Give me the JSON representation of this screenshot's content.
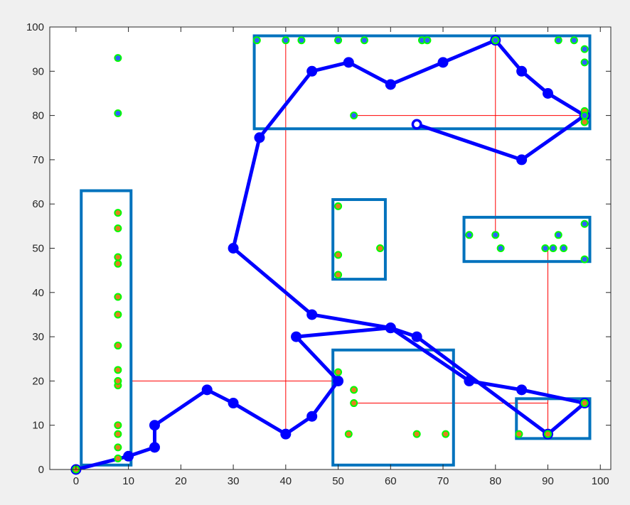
{
  "chart_data": {
    "type": "scatter",
    "title": "",
    "xlabel": "",
    "ylabel": "",
    "xlim": [
      -5,
      102
    ],
    "ylim": [
      0,
      100
    ],
    "grid": false,
    "xticks": [
      "0",
      "10",
      "20",
      "30",
      "40",
      "50",
      "60",
      "70",
      "80",
      "90",
      "100"
    ],
    "yticks": [
      "0",
      "10",
      "20",
      "30",
      "40",
      "50",
      "60",
      "70",
      "80",
      "90",
      "100"
    ],
    "colors": {
      "path": "#0000ff",
      "cluster_box": "#0072bd",
      "connector": "#ff0000",
      "marker_edge": "#00ff00",
      "marker_face_a": "#e08020",
      "marker_face_b": "#3060ff",
      "plot_bg": "#ffffff",
      "figure_bg": "#f0f0f0",
      "axis": "#262626"
    },
    "path_points": [
      [
        0,
        0
      ],
      [
        10,
        3
      ],
      [
        15,
        5
      ],
      [
        15,
        10
      ],
      [
        25,
        18
      ],
      [
        30,
        15
      ],
      [
        40,
        8
      ],
      [
        45,
        12
      ],
      [
        50,
        20
      ],
      [
        42,
        30
      ],
      [
        60,
        32
      ],
      [
        75,
        20
      ],
      [
        85,
        18
      ],
      [
        97,
        15
      ],
      [
        90,
        8
      ],
      [
        65,
        30
      ],
      [
        60,
        32
      ],
      [
        45,
        35
      ],
      [
        30,
        50
      ],
      [
        35,
        75
      ],
      [
        45,
        90
      ],
      [
        52,
        92
      ],
      [
        60,
        87
      ],
      [
        70,
        92
      ],
      [
        80,
        97
      ],
      [
        85,
        90
      ],
      [
        90,
        85
      ],
      [
        97,
        80
      ],
      [
        85,
        70
      ],
      [
        65,
        78
      ]
    ],
    "path_start": [
      65,
      78
    ],
    "cluster_boxes": [
      [
        1,
        1,
        10.5,
        63
      ],
      [
        49,
        43,
        59,
        61
      ],
      [
        49,
        1,
        72,
        27
      ],
      [
        74,
        47,
        98,
        57
      ],
      [
        84,
        7,
        98,
        16
      ],
      [
        34,
        77,
        98,
        98
      ]
    ],
    "connectors": [
      [
        [
          10.5,
          20
        ],
        [
          49,
          20
        ]
      ],
      [
        [
          40,
          8
        ],
        [
          40,
          97
        ]
      ],
      [
        [
          53,
          15
        ],
        [
          90,
          15
        ]
      ],
      [
        [
          90,
          8
        ],
        [
          90,
          50
        ]
      ],
      [
        [
          80,
          53
        ],
        [
          80,
          97
        ]
      ],
      [
        [
          53,
          80
        ],
        [
          97,
          80
        ]
      ]
    ],
    "points_a": [
      [
        0,
        0
      ],
      [
        8,
        2.5
      ],
      [
        8,
        5
      ],
      [
        8,
        8
      ],
      [
        8,
        10
      ],
      [
        8,
        19
      ],
      [
        8,
        20
      ],
      [
        8,
        22.5
      ],
      [
        8,
        28
      ],
      [
        8,
        35
      ],
      [
        8,
        39
      ],
      [
        8,
        46.5
      ],
      [
        8,
        48
      ],
      [
        8,
        54.5
      ],
      [
        8,
        58
      ],
      [
        50,
        22
      ],
      [
        53,
        18
      ],
      [
        53,
        15
      ],
      [
        52,
        8
      ],
      [
        65,
        8
      ],
      [
        70.5,
        8
      ],
      [
        84.5,
        8
      ],
      [
        90,
        8
      ],
      [
        97,
        15
      ],
      [
        50,
        44
      ],
      [
        50,
        48.5
      ],
      [
        50,
        59.5
      ],
      [
        58,
        50
      ],
      [
        97,
        78.5
      ],
      [
        97,
        81
      ],
      [
        80,
        97
      ]
    ],
    "points_b": [
      [
        8,
        93
      ],
      [
        8,
        80.5
      ],
      [
        75,
        53
      ],
      [
        80,
        53
      ],
      [
        81,
        50
      ],
      [
        89.5,
        50
      ],
      [
        91,
        50
      ],
      [
        92,
        53
      ],
      [
        93,
        50
      ],
      [
        97,
        47.5
      ],
      [
        97,
        55.5
      ],
      [
        34.5,
        97
      ],
      [
        40,
        97
      ],
      [
        43,
        97
      ],
      [
        50,
        97
      ],
      [
        55,
        97
      ],
      [
        66,
        97
      ],
      [
        67,
        97
      ],
      [
        80,
        97
      ],
      [
        92,
        97
      ],
      [
        95,
        97
      ],
      [
        97,
        95
      ],
      [
        97,
        92
      ],
      [
        53,
        80
      ],
      [
        97,
        80
      ]
    ]
  }
}
